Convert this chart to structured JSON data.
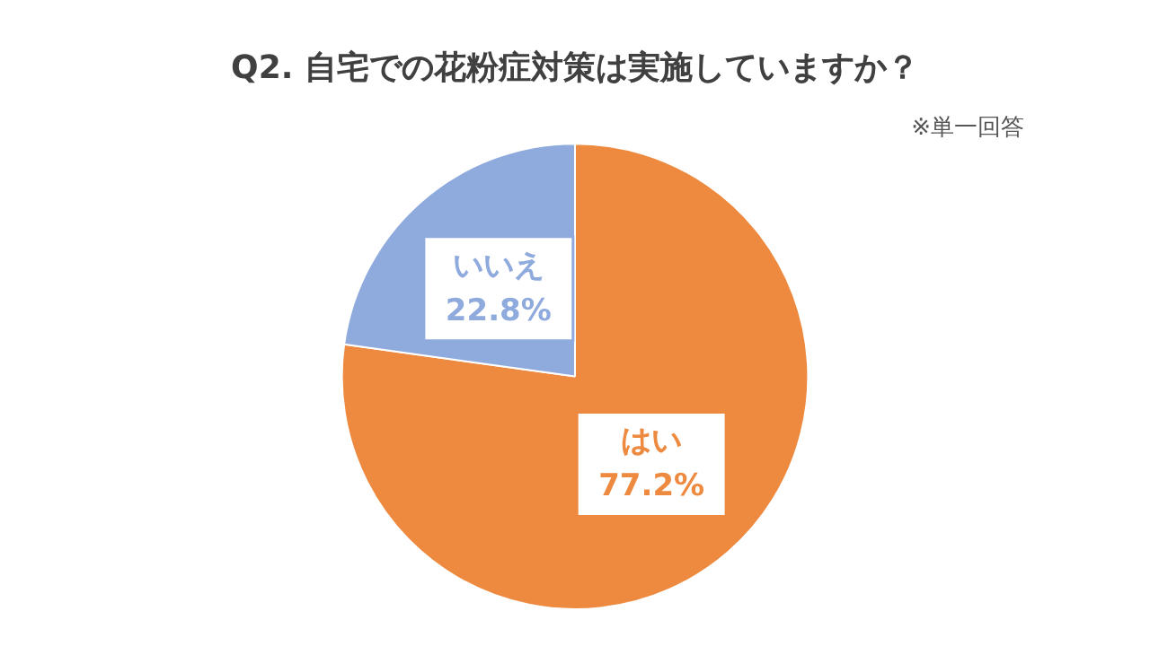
{
  "chart_data": {
    "type": "pie",
    "title": "Q2. 自宅での花粉症対策は実施していますか？",
    "annotations": [
      "※単一回答"
    ],
    "categories": [
      "はい",
      "いいえ"
    ],
    "values": [
      77.2,
      22.8
    ],
    "value_labels": [
      "77.2%",
      "22.8%"
    ],
    "colors": [
      "#ed8a3f",
      "#8faadc"
    ],
    "legend": false
  }
}
